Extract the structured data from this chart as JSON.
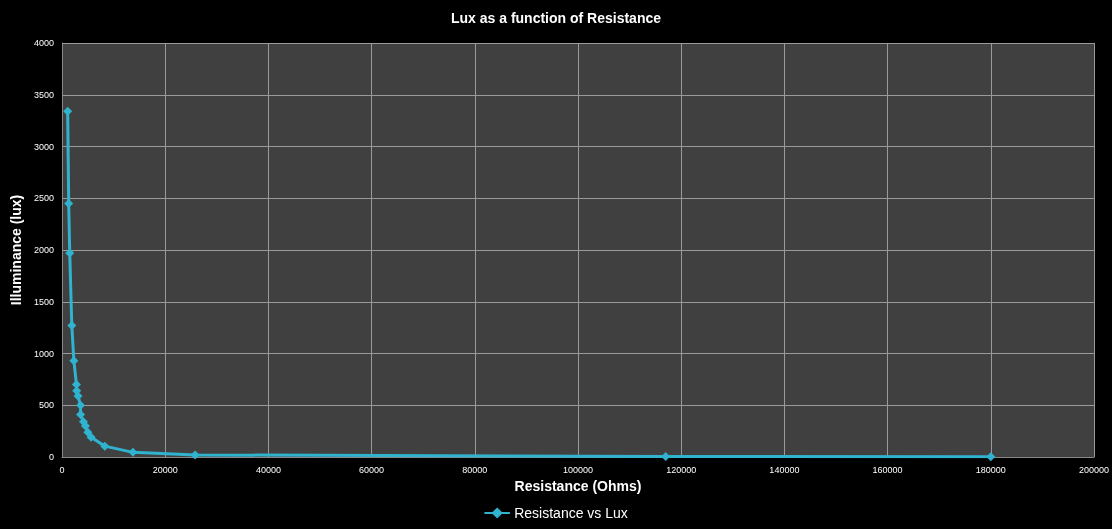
{
  "chart_data": {
    "type": "line",
    "title": "Lux as a function of Resistance",
    "xlabel": "Resistance (Ohms)",
    "ylabel": "Illuminance (lux)",
    "series": [
      {
        "name": "Resistance vs Lux",
        "color": "#2fb3cf",
        "x": [
          1100,
          1300,
          1500,
          1900,
          2300,
          2800,
          2850,
          3100,
          3600,
          3600,
          4150,
          4550,
          5000,
          5650,
          8300,
          13750,
          25800,
          117000,
          180000
        ],
        "values": [
          3340,
          2450,
          1970,
          1270,
          930,
          700,
          640,
          590,
          500,
          410,
          340,
          300,
          240,
          190,
          105,
          45,
          20,
          5,
          2
        ]
      }
    ],
    "xlim": [
      0,
      200000
    ],
    "xticks": [
      0,
      20000,
      40000,
      60000,
      80000,
      100000,
      120000,
      140000,
      160000,
      180000,
      200000
    ],
    "ylim": [
      0,
      4000
    ],
    "yticks": [
      0,
      500,
      1000,
      1500,
      2000,
      2500,
      3000,
      3500,
      4000
    ],
    "grid": true,
    "legend": "bottom",
    "marker": "diamond",
    "line_style": "solid"
  }
}
